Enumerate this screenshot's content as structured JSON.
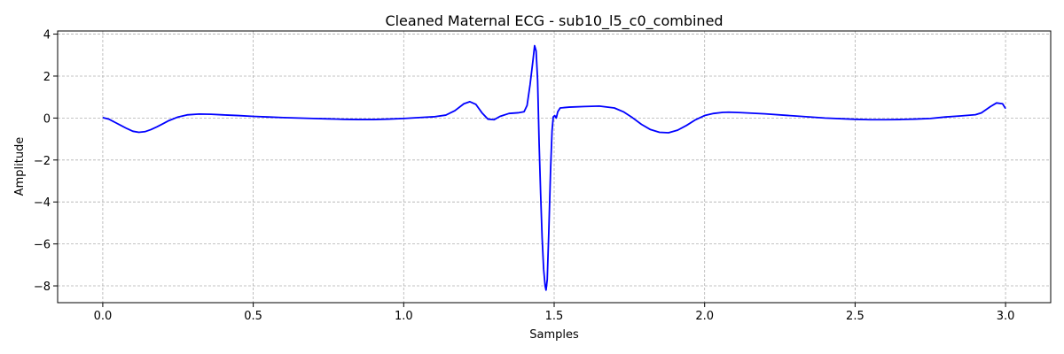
{
  "chart_data": {
    "type": "line",
    "title": "Cleaned Maternal ECG - sub10_l5_c0_combined",
    "xlabel": "Samples",
    "ylabel": "Amplitude",
    "xlim": [
      -0.15,
      3.15
    ],
    "ylim": [
      -8.8,
      4.15
    ],
    "xticks": [
      0.0,
      0.5,
      1.0,
      1.5,
      2.0,
      2.5,
      3.0
    ],
    "xtick_labels": [
      "0.0",
      "0.5",
      "1.0",
      "1.5",
      "2.0",
      "2.5",
      "3.0"
    ],
    "yticks": [
      -8,
      -6,
      -4,
      -2,
      0,
      2,
      4
    ],
    "ytick_labels": [
      "−8",
      "−6",
      "−4",
      "−2",
      "0",
      "2",
      "4"
    ],
    "grid": true,
    "line_color": "#0000ff",
    "series": [
      {
        "points": [
          [
            0.0,
            0.02
          ],
          [
            0.02,
            -0.05
          ],
          [
            0.04,
            -0.2
          ],
          [
            0.06,
            -0.35
          ],
          [
            0.08,
            -0.5
          ],
          [
            0.1,
            -0.63
          ],
          [
            0.12,
            -0.68
          ],
          [
            0.14,
            -0.65
          ],
          [
            0.16,
            -0.55
          ],
          [
            0.18,
            -0.42
          ],
          [
            0.2,
            -0.27
          ],
          [
            0.22,
            -0.12
          ],
          [
            0.25,
            0.05
          ],
          [
            0.28,
            0.15
          ],
          [
            0.32,
            0.19
          ],
          [
            0.36,
            0.18
          ],
          [
            0.4,
            0.15
          ],
          [
            0.45,
            0.12
          ],
          [
            0.5,
            0.08
          ],
          [
            0.55,
            0.05
          ],
          [
            0.6,
            0.02
          ],
          [
            0.65,
            0.0
          ],
          [
            0.7,
            -0.02
          ],
          [
            0.75,
            -0.04
          ],
          [
            0.8,
            -0.06
          ],
          [
            0.85,
            -0.07
          ],
          [
            0.9,
            -0.07
          ],
          [
            0.95,
            -0.05
          ],
          [
            1.0,
            -0.02
          ],
          [
            1.05,
            0.02
          ],
          [
            1.1,
            0.06
          ],
          [
            1.14,
            0.14
          ],
          [
            1.17,
            0.35
          ],
          [
            1.2,
            0.68
          ],
          [
            1.22,
            0.78
          ],
          [
            1.24,
            0.65
          ],
          [
            1.26,
            0.25
          ],
          [
            1.28,
            -0.05
          ],
          [
            1.3,
            -0.08
          ],
          [
            1.32,
            0.08
          ],
          [
            1.35,
            0.22
          ],
          [
            1.38,
            0.25
          ],
          [
            1.4,
            0.3
          ],
          [
            1.41,
            0.6
          ],
          [
            1.42,
            1.6
          ],
          [
            1.43,
            2.8
          ],
          [
            1.435,
            3.45
          ],
          [
            1.44,
            3.2
          ],
          [
            1.445,
            1.8
          ],
          [
            1.45,
            -1.2
          ],
          [
            1.455,
            -3.6
          ],
          [
            1.46,
            -5.7
          ],
          [
            1.465,
            -7.2
          ],
          [
            1.47,
            -8.0
          ],
          [
            1.473,
            -8.2
          ],
          [
            1.477,
            -7.7
          ],
          [
            1.482,
            -5.5
          ],
          [
            1.488,
            -2.5
          ],
          [
            1.493,
            -0.6
          ],
          [
            1.497,
            0.05
          ],
          [
            1.502,
            0.12
          ],
          [
            1.507,
            0.0
          ],
          [
            1.512,
            0.3
          ],
          [
            1.52,
            0.48
          ],
          [
            1.55,
            0.52
          ],
          [
            1.6,
            0.55
          ],
          [
            1.65,
            0.57
          ],
          [
            1.7,
            0.48
          ],
          [
            1.73,
            0.3
          ],
          [
            1.76,
            0.02
          ],
          [
            1.79,
            -0.3
          ],
          [
            1.82,
            -0.55
          ],
          [
            1.85,
            -0.68
          ],
          [
            1.88,
            -0.7
          ],
          [
            1.91,
            -0.58
          ],
          [
            1.94,
            -0.35
          ],
          [
            1.97,
            -0.08
          ],
          [
            2.0,
            0.12
          ],
          [
            2.03,
            0.22
          ],
          [
            2.06,
            0.27
          ],
          [
            2.08,
            0.28
          ],
          [
            2.12,
            0.26
          ],
          [
            2.2,
            0.2
          ],
          [
            2.3,
            0.1
          ],
          [
            2.4,
            0.0
          ],
          [
            2.5,
            -0.06
          ],
          [
            2.55,
            -0.08
          ],
          [
            2.6,
            -0.08
          ],
          [
            2.65,
            -0.07
          ],
          [
            2.7,
            -0.05
          ],
          [
            2.75,
            -0.02
          ],
          [
            2.8,
            0.05
          ],
          [
            2.85,
            0.1
          ],
          [
            2.9,
            0.16
          ],
          [
            2.92,
            0.25
          ],
          [
            2.95,
            0.55
          ],
          [
            2.97,
            0.72
          ],
          [
            2.99,
            0.68
          ],
          [
            3.0,
            0.45
          ]
        ]
      }
    ]
  }
}
